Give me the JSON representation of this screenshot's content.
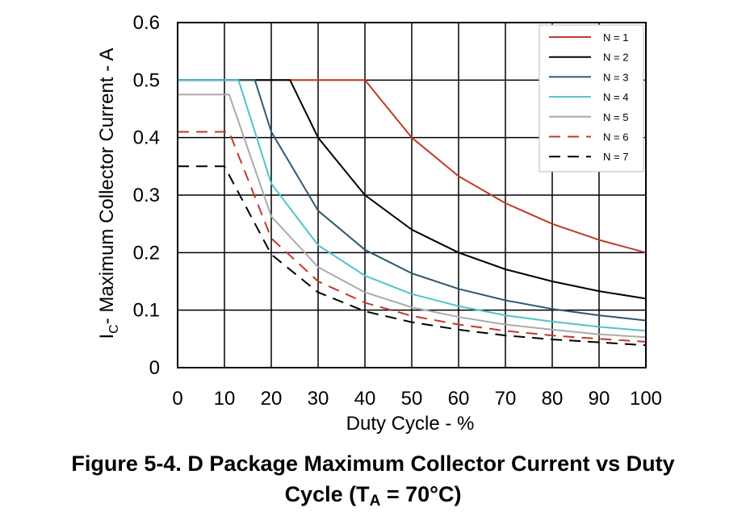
{
  "chart_data": {
    "type": "line",
    "title": "",
    "xlabel": "Duty Cycle - %",
    "ylabel": {
      "prefix": "I",
      "sub": "C",
      "suffix": "- Maximum Collector Current - A"
    },
    "xlim": [
      0,
      100
    ],
    "ylim": [
      0,
      0.6
    ],
    "xticks": [
      "0",
      "10",
      "20",
      "30",
      "40",
      "50",
      "60",
      "70",
      "80",
      "90",
      "100"
    ],
    "yticks": [
      "0",
      "0.1",
      "0.2",
      "0.3",
      "0.4",
      "0.5",
      "0.6"
    ],
    "grid": true,
    "legend_position": "top-right",
    "series": [
      {
        "name": "N = 1",
        "color": "#c0392b",
        "dash": false,
        "x": [
          0,
          40,
          50,
          60,
          70,
          80,
          90,
          100
        ],
        "y": [
          0.5,
          0.5,
          0.4,
          0.333,
          0.286,
          0.25,
          0.222,
          0.2
        ]
      },
      {
        "name": "N = 2",
        "color": "#000000",
        "dash": false,
        "x": [
          0,
          24,
          30,
          40,
          50,
          60,
          70,
          80,
          90,
          100
        ],
        "y": [
          0.5,
          0.5,
          0.4,
          0.3,
          0.24,
          0.2,
          0.171,
          0.15,
          0.133,
          0.12
        ]
      },
      {
        "name": "N = 3",
        "color": "#2e5a6e",
        "dash": false,
        "x": [
          0,
          16.5,
          20,
          30,
          40,
          50,
          60,
          70,
          80,
          90,
          100
        ],
        "y": [
          0.5,
          0.5,
          0.41,
          0.273,
          0.205,
          0.164,
          0.137,
          0.117,
          0.102,
          0.091,
          0.082
        ]
      },
      {
        "name": "N = 4",
        "color": "#4fc3cc",
        "dash": false,
        "x": [
          0,
          13,
          20,
          30,
          40,
          50,
          60,
          70,
          80,
          90,
          100
        ],
        "y": [
          0.5,
          0.5,
          0.32,
          0.213,
          0.16,
          0.128,
          0.107,
          0.091,
          0.08,
          0.071,
          0.064
        ]
      },
      {
        "name": "N = 5",
        "color": "#aaaaaa",
        "dash": false,
        "x": [
          0,
          11,
          20,
          30,
          40,
          50,
          60,
          70,
          80,
          90,
          100
        ],
        "y": [
          0.475,
          0.475,
          0.263,
          0.175,
          0.131,
          0.105,
          0.088,
          0.075,
          0.066,
          0.058,
          0.053
        ]
      },
      {
        "name": "N = 6",
        "color": "#c0392b",
        "dash": true,
        "x": [
          0,
          11,
          20,
          30,
          40,
          50,
          60,
          70,
          80,
          90,
          100
        ],
        "y": [
          0.41,
          0.41,
          0.225,
          0.15,
          0.113,
          0.09,
          0.075,
          0.064,
          0.056,
          0.05,
          0.045
        ]
      },
      {
        "name": "N = 7",
        "color": "#000000",
        "dash": true,
        "x": [
          0,
          10,
          20,
          30,
          40,
          50,
          60,
          70,
          80,
          90,
          100
        ],
        "y": [
          0.35,
          0.35,
          0.197,
          0.131,
          0.098,
          0.079,
          0.066,
          0.056,
          0.049,
          0.044,
          0.039
        ]
      }
    ]
  },
  "caption": {
    "line1": "Figure 5-4. D Package Maximum Collector Current vs Duty",
    "line2_prefix": "Cycle (T",
    "line2_sub": "A",
    "line2_suffix": " = 70°C)"
  }
}
